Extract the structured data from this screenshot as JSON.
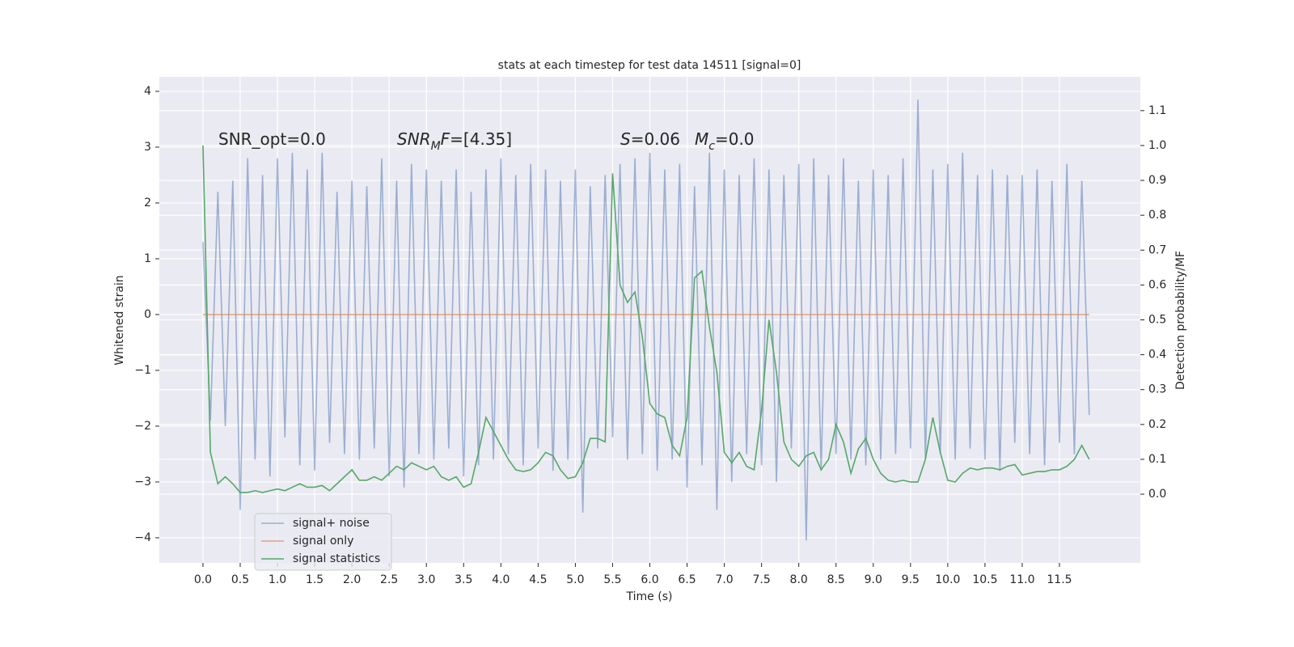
{
  "chart_data": {
    "type": "line",
    "title": "stats at each timestep for test data 14511 [signal=0]",
    "xlabel": "Time (s)",
    "ylabel": "Whitened strain",
    "y2label": "Detection probability/MF",
    "annotations": [
      [
        {
          "text": "SNR_opt=0.0",
          "style": "normal"
        }
      ],
      [
        {
          "text": "SNR",
          "style": "italic"
        },
        {
          "text": "M",
          "style": "italic-sub"
        },
        {
          "text": "F",
          "style": "italic"
        },
        {
          "text": "=[4.35]",
          "style": "normal"
        }
      ],
      [
        {
          "text": "S",
          "style": "italic"
        },
        {
          "text": "=0.06",
          "style": "normal"
        }
      ],
      [
        {
          "text": "M",
          "style": "italic"
        },
        {
          "text": "c",
          "style": "italic-sub"
        },
        {
          "text": "=0.0",
          "style": "normal"
        }
      ]
    ],
    "background": "#eaeaf2",
    "grid": true,
    "legend": "lower left",
    "xlim": [
      -0.586,
      12.586
    ],
    "ylim": [
      -4.45,
      4.26
    ],
    "y2lim": [
      -0.197,
      1.197
    ],
    "xticks": [
      {
        "value": 0,
        "label": "0.0"
      },
      0.5,
      {
        "value": 1,
        "label": "1.0"
      },
      1.5,
      {
        "value": 2,
        "label": "2.0"
      },
      2.5,
      {
        "value": 3,
        "label": "3.0"
      },
      3.5,
      {
        "value": 4,
        "label": "4.0"
      },
      4.5,
      {
        "value": 5,
        "label": "5.0"
      },
      5.5,
      {
        "value": 6,
        "label": "6.0"
      },
      6.5,
      {
        "value": 7,
        "label": "7.0"
      },
      7.5,
      {
        "value": 8,
        "label": "8.0"
      },
      8.5,
      {
        "value": 9,
        "label": "9.0"
      },
      9.5,
      {
        "value": 10,
        "label": "10.0"
      },
      10.5,
      {
        "value": 11,
        "label": "11.0"
      },
      11.5
    ],
    "yticks": [
      {
        "value": -4,
        "label": "−4"
      },
      {
        "value": -3,
        "label": "−3"
      },
      {
        "value": -2,
        "label": "−2"
      },
      {
        "value": -1,
        "label": "−1"
      },
      0,
      1,
      2,
      3,
      4
    ],
    "y2ticks": [
      {
        "value": 0,
        "label": "0.0"
      },
      0.1,
      0.2,
      0.3,
      0.4,
      0.5,
      0.6,
      0.7,
      0.8,
      0.9,
      {
        "value": 1,
        "label": "1.0"
      },
      1.1
    ],
    "x": [
      0,
      0.1,
      0.2,
      0.3,
      0.4,
      0.5,
      0.6,
      0.7,
      0.8,
      0.9,
      1,
      1.1,
      1.2,
      1.3,
      1.4,
      1.5,
      1.6,
      1.7,
      1.8,
      1.9,
      2,
      2.1,
      2.2,
      2.3,
      2.4,
      2.5,
      2.6,
      2.7,
      2.8,
      2.9,
      3,
      3.1,
      3.2,
      3.3,
      3.4,
      3.5,
      3.6,
      3.7,
      3.8,
      3.9,
      4,
      4.1,
      4.2,
      4.3,
      4.4,
      4.5,
      4.6,
      4.7,
      4.8,
      4.9,
      5,
      5.1,
      5.2,
      5.3,
      5.4,
      5.5,
      5.6,
      5.7,
      5.8,
      5.9,
      6,
      6.1,
      6.2,
      6.3,
      6.4,
      6.5,
      6.6,
      6.7,
      6.8,
      6.9,
      7,
      7.1,
      7.2,
      7.3,
      7.4,
      7.5,
      7.6,
      7.7,
      7.8,
      7.9,
      8,
      8.1,
      8.2,
      8.3,
      8.4,
      8.5,
      8.6,
      8.7,
      8.8,
      8.9,
      9,
      9.1,
      9.2,
      9.3,
      9.4,
      9.5,
      9.6,
      9.7,
      9.8,
      9.9,
      10,
      10.1,
      10.2,
      10.3,
      10.4,
      10.5,
      10.6,
      10.7,
      10.8,
      10.9,
      11,
      11.1,
      11.2,
      11.3,
      11.4,
      11.5,
      11.6,
      11.7,
      11.8,
      11.9
    ],
    "series": [
      {
        "name": "signal+ noise",
        "color": "#4c72b0",
        "opacity": 0.5,
        "values": [
          1.3,
          -1.9,
          2.2,
          -2.0,
          2.4,
          -3.5,
          2.8,
          -2.6,
          2.5,
          -2.9,
          2.8,
          -2.2,
          2.9,
          -2.7,
          2.6,
          -2.8,
          2.9,
          -2.3,
          2.2,
          -2.5,
          2.4,
          -2.6,
          2.3,
          -2.4,
          2.8,
          -2.9,
          2.4,
          -3.1,
          2.7,
          -2.5,
          2.6,
          -2.6,
          2.4,
          -2.4,
          2.6,
          -2.9,
          2.2,
          -2.7,
          2.6,
          -2.6,
          2.8,
          -2.5,
          2.5,
          -2.7,
          2.7,
          -2.4,
          2.6,
          -2.8,
          2.4,
          -2.6,
          2.6,
          -3.55,
          2.3,
          -2.4,
          2.5,
          -2.2,
          2.7,
          -2.6,
          2.8,
          -2.5,
          2.9,
          -2.8,
          2.6,
          -2.6,
          2.7,
          -3.1,
          2.3,
          -2.7,
          2.9,
          -3.5,
          2.6,
          -3.0,
          2.5,
          -2.5,
          2.8,
          -2.7,
          2.6,
          -3.0,
          2.5,
          -2.4,
          2.7,
          -4.05,
          2.8,
          -2.8,
          2.5,
          -2.5,
          2.8,
          -2.6,
          2.4,
          -2.7,
          2.6,
          -2.6,
          2.5,
          -2.5,
          2.8,
          -2.4,
          3.85,
          -2.6,
          2.6,
          -2.5,
          2.7,
          -2.6,
          2.9,
          -2.4,
          2.5,
          -2.6,
          2.6,
          -2.8,
          2.5,
          -2.3,
          2.5,
          -2.5,
          2.6,
          -2.7,
          2.4,
          -2.3,
          2.7,
          -2.5,
          2.4,
          -1.8
        ]
      },
      {
        "name": "signal only",
        "color": "#dd8452",
        "opacity": 0.7,
        "values": [
          0,
          0,
          0,
          0,
          0,
          0,
          0,
          0,
          0,
          0,
          0,
          0,
          0,
          0,
          0,
          0,
          0,
          0,
          0,
          0,
          0,
          0,
          0,
          0,
          0,
          0,
          0,
          0,
          0,
          0,
          0,
          0,
          0,
          0,
          0,
          0,
          0,
          0,
          0,
          0,
          0,
          0,
          0,
          0,
          0,
          0,
          0,
          0,
          0,
          0,
          0,
          0,
          0,
          0,
          0,
          0,
          0,
          0,
          0,
          0,
          0,
          0,
          0,
          0,
          0,
          0,
          0,
          0,
          0,
          0,
          0,
          0,
          0,
          0,
          0,
          0,
          0,
          0,
          0,
          0,
          0,
          0,
          0,
          0,
          0,
          0,
          0,
          0,
          0,
          0,
          0,
          0,
          0,
          0,
          0,
          0,
          0,
          0,
          0,
          0,
          0,
          0,
          0,
          0,
          0,
          0,
          0,
          0,
          0,
          0,
          0,
          0,
          0,
          0,
          0,
          0,
          0,
          0,
          0,
          0
        ]
      },
      {
        "name": "signal statistics",
        "color": "#55a868",
        "opacity": 1,
        "axis": "y2",
        "values": [
          1.0,
          0.12,
          0.03,
          0.05,
          0.03,
          0.005,
          0.005,
          0.01,
          0.005,
          0.01,
          0.015,
          0.01,
          0.02,
          0.03,
          0.02,
          0.02,
          0.025,
          0.01,
          0.03,
          0.05,
          0.07,
          0.04,
          0.04,
          0.05,
          0.04,
          0.06,
          0.08,
          0.07,
          0.09,
          0.08,
          0.07,
          0.08,
          0.05,
          0.04,
          0.05,
          0.02,
          0.03,
          0.12,
          0.22,
          0.18,
          0.14,
          0.1,
          0.07,
          0.065,
          0.07,
          0.09,
          0.12,
          0.11,
          0.07,
          0.045,
          0.05,
          0.09,
          0.16,
          0.16,
          0.15,
          0.92,
          0.6,
          0.55,
          0.58,
          0.45,
          0.26,
          0.23,
          0.22,
          0.14,
          0.11,
          0.22,
          0.62,
          0.64,
          0.48,
          0.35,
          0.12,
          0.09,
          0.12,
          0.08,
          0.07,
          0.24,
          0.5,
          0.35,
          0.15,
          0.1,
          0.08,
          0.11,
          0.12,
          0.07,
          0.1,
          0.2,
          0.15,
          0.06,
          0.13,
          0.16,
          0.1,
          0.06,
          0.04,
          0.035,
          0.04,
          0.035,
          0.035,
          0.1,
          0.22,
          0.12,
          0.04,
          0.035,
          0.06,
          0.075,
          0.07,
          0.075,
          0.075,
          0.07,
          0.08,
          0.085,
          0.055,
          0.06,
          0.065,
          0.065,
          0.07,
          0.07,
          0.08,
          0.1,
          0.14,
          0.1
        ]
      }
    ]
  }
}
